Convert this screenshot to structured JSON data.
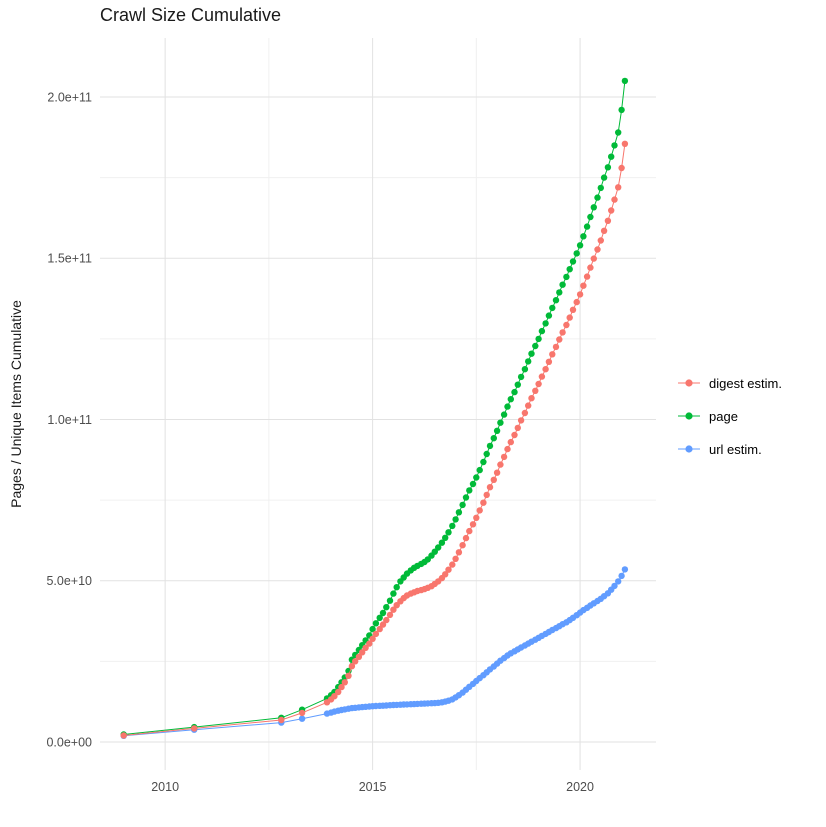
{
  "chart_data": {
    "type": "scatter",
    "style": "points connected by thin lines (ggplot-like)",
    "title": "Crawl Size Cumulative",
    "xlabel": "",
    "ylabel": "Pages / Unique Items Cumulative",
    "y_unit": "billions (1e9 items)",
    "xlim": [
      2008.43,
      2021.83
    ],
    "ylim": [
      -8.7,
      218.3
    ],
    "grid": true,
    "legend_position": "right",
    "x_major_ticks": [
      2010,
      2015,
      2020
    ],
    "x_minor_ticks": [
      2012.5,
      2017.5
    ],
    "x_tick_labels": [
      "2010",
      "2015",
      "2020"
    ],
    "y_major_ticks": [
      0,
      50,
      100,
      150,
      200
    ],
    "y_minor_ticks": [
      25,
      75,
      125,
      175
    ],
    "y_tick_labels": [
      "0.0e+00",
      "5.0e+10",
      "1.0e+11",
      "1.5e+11",
      "2.0e+11"
    ],
    "grid_major_color": "#e2e2e2",
    "grid_minor_color": "#f0f0f0",
    "series": [
      {
        "name": "digest estim.",
        "color": "#F8766D",
        "points": [
          [
            2009.0,
            2.0
          ],
          [
            2010.7,
            4.2
          ],
          [
            2012.8,
            6.8
          ],
          [
            2013.3,
            9
          ],
          [
            2013.9,
            12.3
          ],
          [
            2014.0,
            13.2
          ],
          [
            2014.08,
            14.2
          ],
          [
            2014.17,
            15.5
          ],
          [
            2014.25,
            17
          ],
          [
            2014.33,
            18.5
          ],
          [
            2014.42,
            20.5
          ],
          [
            2014.5,
            23.5
          ],
          [
            2014.58,
            25
          ],
          [
            2014.67,
            26.4
          ],
          [
            2014.75,
            27.8
          ],
          [
            2014.83,
            29.2
          ],
          [
            2014.92,
            30.5
          ],
          [
            2015.0,
            32
          ],
          [
            2015.08,
            33.5
          ],
          [
            2015.17,
            35
          ],
          [
            2015.25,
            36.4
          ],
          [
            2015.33,
            37.8
          ],
          [
            2015.42,
            39.4
          ],
          [
            2015.5,
            41
          ],
          [
            2015.58,
            42.4
          ],
          [
            2015.67,
            43.6
          ],
          [
            2015.75,
            44.6
          ],
          [
            2015.83,
            45.4
          ],
          [
            2015.92,
            46
          ],
          [
            2016.0,
            46.4
          ],
          [
            2016.08,
            46.8
          ],
          [
            2016.17,
            47.1
          ],
          [
            2016.25,
            47.4
          ],
          [
            2016.33,
            47.8
          ],
          [
            2016.42,
            48.3
          ],
          [
            2016.5,
            49
          ],
          [
            2016.58,
            49.8
          ],
          [
            2016.67,
            50.8
          ],
          [
            2016.75,
            52
          ],
          [
            2016.83,
            53.4
          ],
          [
            2016.92,
            55
          ],
          [
            2017.0,
            56.8
          ],
          [
            2017.08,
            58.8
          ],
          [
            2017.17,
            61
          ],
          [
            2017.25,
            63.2
          ],
          [
            2017.33,
            65.4
          ],
          [
            2017.42,
            67.5
          ],
          [
            2017.5,
            69.5
          ],
          [
            2017.58,
            71.8
          ],
          [
            2017.67,
            74.2
          ],
          [
            2017.75,
            76.6
          ],
          [
            2017.83,
            79
          ],
          [
            2017.92,
            81.3
          ],
          [
            2018.0,
            83.5
          ],
          [
            2018.08,
            86
          ],
          [
            2018.17,
            88.4
          ],
          [
            2018.25,
            90.8
          ],
          [
            2018.33,
            93
          ],
          [
            2018.42,
            95.2
          ],
          [
            2018.5,
            97.4
          ],
          [
            2018.58,
            99.7
          ],
          [
            2018.67,
            102
          ],
          [
            2018.75,
            104.3
          ],
          [
            2018.83,
            106.6
          ],
          [
            2018.92,
            108.9
          ],
          [
            2019.0,
            111
          ],
          [
            2019.08,
            113.3
          ],
          [
            2019.17,
            115.6
          ],
          [
            2019.25,
            117.9
          ],
          [
            2019.33,
            120.2
          ],
          [
            2019.42,
            122.5
          ],
          [
            2019.5,
            124.8
          ],
          [
            2019.58,
            127
          ],
          [
            2019.67,
            129.3
          ],
          [
            2019.75,
            131.6
          ],
          [
            2019.83,
            134
          ],
          [
            2019.92,
            136.4
          ],
          [
            2020.0,
            138.8
          ],
          [
            2020.08,
            141.5
          ],
          [
            2020.17,
            144.3
          ],
          [
            2020.25,
            147.1
          ],
          [
            2020.33,
            149.9
          ],
          [
            2020.42,
            152.7
          ],
          [
            2020.5,
            155.5
          ],
          [
            2020.58,
            158.5
          ],
          [
            2020.67,
            161.6
          ],
          [
            2020.75,
            164.8
          ],
          [
            2020.83,
            168.2
          ],
          [
            2020.92,
            172
          ],
          [
            2021.0,
            178
          ],
          [
            2021.08,
            185.5
          ]
        ]
      },
      {
        "name": "page",
        "color": "#00BA38",
        "points": [
          [
            2009.0,
            2.3
          ],
          [
            2010.7,
            4.6
          ],
          [
            2012.8,
            7.5
          ],
          [
            2013.3,
            10
          ],
          [
            2013.9,
            13.5
          ],
          [
            2014.0,
            14.5
          ],
          [
            2014.08,
            15.5
          ],
          [
            2014.17,
            17
          ],
          [
            2014.25,
            18.5
          ],
          [
            2014.33,
            20
          ],
          [
            2014.42,
            22
          ],
          [
            2014.5,
            25.5
          ],
          [
            2014.58,
            27
          ],
          [
            2014.67,
            28.5
          ],
          [
            2014.75,
            30
          ],
          [
            2014.83,
            31.5
          ],
          [
            2014.92,
            33
          ],
          [
            2015.0,
            35
          ],
          [
            2015.08,
            36.8
          ],
          [
            2015.17,
            38.5
          ],
          [
            2015.25,
            40
          ],
          [
            2015.33,
            41.8
          ],
          [
            2015.42,
            43.8
          ],
          [
            2015.5,
            46
          ],
          [
            2015.58,
            48
          ],
          [
            2015.67,
            49.8
          ],
          [
            2015.75,
            51
          ],
          [
            2015.83,
            52.2
          ],
          [
            2015.92,
            53.2
          ],
          [
            2016.0,
            54
          ],
          [
            2016.08,
            54.6
          ],
          [
            2016.17,
            55.2
          ],
          [
            2016.25,
            55.8
          ],
          [
            2016.33,
            56.6
          ],
          [
            2016.42,
            57.8
          ],
          [
            2016.5,
            59
          ],
          [
            2016.58,
            60.3
          ],
          [
            2016.67,
            61.8
          ],
          [
            2016.75,
            63.3
          ],
          [
            2016.83,
            65
          ],
          [
            2016.92,
            67
          ],
          [
            2017.0,
            69
          ],
          [
            2017.08,
            71.2
          ],
          [
            2017.17,
            73.5
          ],
          [
            2017.25,
            75.8
          ],
          [
            2017.33,
            78
          ],
          [
            2017.42,
            80
          ],
          [
            2017.5,
            82
          ],
          [
            2017.58,
            84.3
          ],
          [
            2017.67,
            86.8
          ],
          [
            2017.75,
            89.3
          ],
          [
            2017.83,
            91.8
          ],
          [
            2017.92,
            94.2
          ],
          [
            2018.0,
            96.5
          ],
          [
            2018.08,
            99
          ],
          [
            2018.17,
            101.5
          ],
          [
            2018.25,
            104
          ],
          [
            2018.33,
            106.3
          ],
          [
            2018.42,
            108.5
          ],
          [
            2018.5,
            110.8
          ],
          [
            2018.58,
            113.2
          ],
          [
            2018.67,
            115.6
          ],
          [
            2018.75,
            118
          ],
          [
            2018.83,
            120.4
          ],
          [
            2018.92,
            122.8
          ],
          [
            2019.0,
            125
          ],
          [
            2019.08,
            127.4
          ],
          [
            2019.17,
            129.8
          ],
          [
            2019.25,
            132.2
          ],
          [
            2019.33,
            134.6
          ],
          [
            2019.42,
            137
          ],
          [
            2019.5,
            139.4
          ],
          [
            2019.58,
            141.8
          ],
          [
            2019.67,
            144.2
          ],
          [
            2019.75,
            146.6
          ],
          [
            2019.83,
            149
          ],
          [
            2019.92,
            151.5
          ],
          [
            2020.0,
            154
          ],
          [
            2020.08,
            156.8
          ],
          [
            2020.17,
            159.8
          ],
          [
            2020.25,
            162.8
          ],
          [
            2020.33,
            165.8
          ],
          [
            2020.42,
            168.8
          ],
          [
            2020.5,
            171.8
          ],
          [
            2020.58,
            175
          ],
          [
            2020.67,
            178.2
          ],
          [
            2020.75,
            181.5
          ],
          [
            2020.83,
            185
          ],
          [
            2020.92,
            189
          ],
          [
            2021.0,
            196
          ],
          [
            2021.08,
            205
          ]
        ]
      },
      {
        "name": "url estim.",
        "color": "#619CFF",
        "points": [
          [
            2009.0,
            1.9
          ],
          [
            2010.7,
            3.8
          ],
          [
            2012.8,
            6.0
          ],
          [
            2013.3,
            7.2
          ],
          [
            2013.9,
            8.8
          ],
          [
            2014.0,
            9.1
          ],
          [
            2014.08,
            9.4
          ],
          [
            2014.17,
            9.7
          ],
          [
            2014.25,
            9.9
          ],
          [
            2014.33,
            10.1
          ],
          [
            2014.42,
            10.3
          ],
          [
            2014.5,
            10.5
          ],
          [
            2014.58,
            10.6
          ],
          [
            2014.67,
            10.7
          ],
          [
            2014.75,
            10.8
          ],
          [
            2014.83,
            10.9
          ],
          [
            2014.92,
            11.0
          ],
          [
            2015.0,
            11.1
          ],
          [
            2015.08,
            11.15
          ],
          [
            2015.17,
            11.2
          ],
          [
            2015.25,
            11.25
          ],
          [
            2015.33,
            11.3
          ],
          [
            2015.42,
            11.4
          ],
          [
            2015.5,
            11.45
          ],
          [
            2015.58,
            11.5
          ],
          [
            2015.67,
            11.55
          ],
          [
            2015.75,
            11.6
          ],
          [
            2015.83,
            11.65
          ],
          [
            2015.92,
            11.7
          ],
          [
            2016.0,
            11.75
          ],
          [
            2016.08,
            11.8
          ],
          [
            2016.17,
            11.85
          ],
          [
            2016.25,
            11.9
          ],
          [
            2016.33,
            11.95
          ],
          [
            2016.42,
            12.0
          ],
          [
            2016.5,
            12.05
          ],
          [
            2016.58,
            12.15
          ],
          [
            2016.67,
            12.3
          ],
          [
            2016.75,
            12.5
          ],
          [
            2016.83,
            12.8
          ],
          [
            2016.92,
            13.2
          ],
          [
            2017.0,
            13.8
          ],
          [
            2017.08,
            14.5
          ],
          [
            2017.17,
            15.3
          ],
          [
            2017.25,
            16.2
          ],
          [
            2017.33,
            17.1
          ],
          [
            2017.42,
            18.0
          ],
          [
            2017.5,
            18.9
          ],
          [
            2017.58,
            19.8
          ],
          [
            2017.67,
            20.7
          ],
          [
            2017.75,
            21.6
          ],
          [
            2017.83,
            22.5
          ],
          [
            2017.92,
            23.4
          ],
          [
            2018.0,
            24.3
          ],
          [
            2018.08,
            25.2
          ],
          [
            2018.17,
            26.0
          ],
          [
            2018.25,
            26.8
          ],
          [
            2018.33,
            27.5
          ],
          [
            2018.42,
            28.1
          ],
          [
            2018.5,
            28.7
          ],
          [
            2018.58,
            29.3
          ],
          [
            2018.67,
            29.9
          ],
          [
            2018.75,
            30.5
          ],
          [
            2018.83,
            31.1
          ],
          [
            2018.92,
            31.7
          ],
          [
            2019.0,
            32.3
          ],
          [
            2019.08,
            32.9
          ],
          [
            2019.17,
            33.5
          ],
          [
            2019.25,
            34.1
          ],
          [
            2019.33,
            34.7
          ],
          [
            2019.42,
            35.3
          ],
          [
            2019.5,
            35.9
          ],
          [
            2019.58,
            36.5
          ],
          [
            2019.67,
            37.1
          ],
          [
            2019.75,
            37.8
          ],
          [
            2019.83,
            38.5
          ],
          [
            2019.92,
            39.3
          ],
          [
            2020.0,
            40.1
          ],
          [
            2020.08,
            40.9
          ],
          [
            2020.17,
            41.6
          ],
          [
            2020.25,
            42.3
          ],
          [
            2020.33,
            43.0
          ],
          [
            2020.42,
            43.7
          ],
          [
            2020.5,
            44.4
          ],
          [
            2020.58,
            45.2
          ],
          [
            2020.67,
            46.1
          ],
          [
            2020.75,
            47.2
          ],
          [
            2020.83,
            48.4
          ],
          [
            2020.92,
            49.8
          ],
          [
            2021.0,
            51.5
          ],
          [
            2021.08,
            53.5
          ]
        ]
      }
    ]
  },
  "legend": {
    "items": [
      {
        "label": "digest estim.",
        "color": "#F8766D"
      },
      {
        "label": "page",
        "color": "#00BA38"
      },
      {
        "label": "url estim.",
        "color": "#619CFF"
      }
    ]
  }
}
